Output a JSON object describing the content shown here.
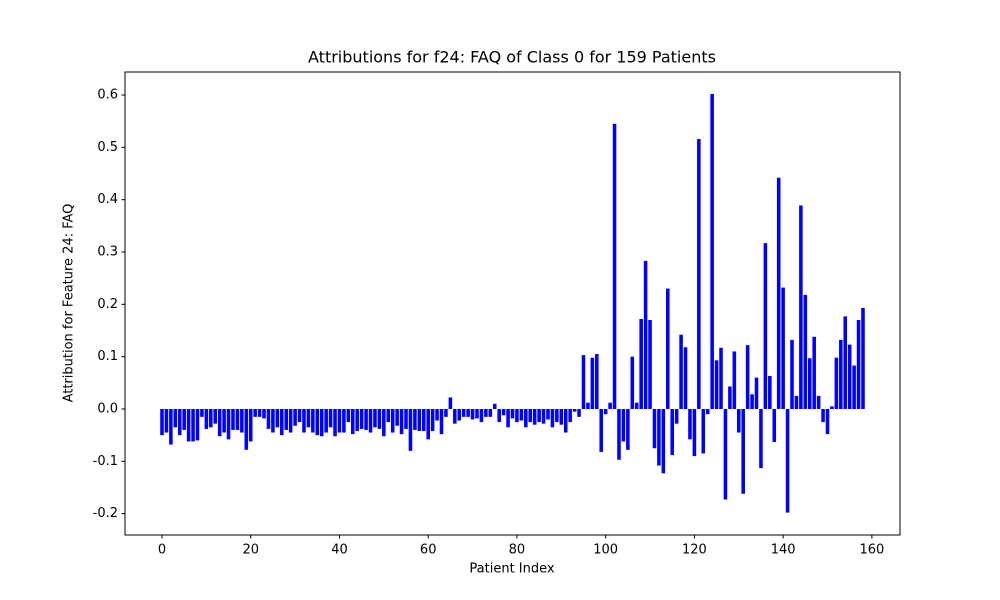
{
  "chart_data": {
    "type": "bar",
    "title": "Attributions for f24: FAQ of Class 0 for 159 Patients",
    "xlabel": "Patient Index",
    "ylabel": "Attribution for Feature 24: FAQ",
    "color": "#0000ff",
    "values": [
      -0.05,
      -0.045,
      -0.068,
      -0.035,
      -0.05,
      -0.04,
      -0.062,
      -0.062,
      -0.06,
      -0.015,
      -0.038,
      -0.035,
      -0.028,
      -0.052,
      -0.045,
      -0.058,
      -0.04,
      -0.04,
      -0.045,
      -0.078,
      -0.062,
      -0.015,
      -0.015,
      -0.018,
      -0.038,
      -0.045,
      -0.035,
      -0.05,
      -0.04,
      -0.045,
      -0.032,
      -0.025,
      -0.045,
      -0.035,
      -0.045,
      -0.05,
      -0.052,
      -0.045,
      -0.035,
      -0.052,
      -0.045,
      -0.045,
      -0.025,
      -0.048,
      -0.042,
      -0.038,
      -0.04,
      -0.045,
      -0.035,
      -0.038,
      -0.052,
      -0.025,
      -0.045,
      -0.032,
      -0.048,
      -0.038,
      -0.08,
      -0.04,
      -0.042,
      -0.042,
      -0.058,
      -0.042,
      -0.022,
      -0.048,
      -0.015,
      0.022,
      -0.028,
      -0.022,
      -0.015,
      -0.015,
      -0.02,
      -0.018,
      -0.025,
      -0.015,
      -0.015,
      0.01,
      -0.025,
      -0.012,
      -0.035,
      -0.018,
      -0.025,
      -0.022,
      -0.035,
      -0.025,
      -0.03,
      -0.025,
      -0.028,
      -0.02,
      -0.035,
      -0.025,
      -0.03,
      -0.045,
      -0.025,
      -0.005,
      -0.015,
      0.103,
      0.012,
      0.098,
      0.105,
      -0.082,
      -0.01,
      0.012,
      0.545,
      -0.097,
      -0.062,
      -0.078,
      0.1,
      0.012,
      0.172,
      0.283,
      0.17,
      -0.075,
      -0.108,
      -0.123,
      0.23,
      -0.088,
      -0.028,
      0.142,
      0.118,
      -0.058,
      -0.09,
      0.516,
      -0.085,
      -0.01,
      0.602,
      0.093,
      0.117,
      -0.173,
      0.043,
      0.11,
      -0.045,
      -0.162,
      0.122,
      0.028,
      0.06,
      -0.113,
      0.317,
      0.063,
      -0.063,
      0.442,
      0.232,
      -0.198,
      0.132,
      0.025,
      0.389,
      0.218,
      0.097,
      0.138,
      0.025,
      -0.025,
      -0.048,
      0.005,
      0.098,
      0.132,
      0.177,
      0.123,
      0.083,
      0.17,
      0.193
    ],
    "xlim": [
      -8.34,
      166.34
    ],
    "xticks": [
      0,
      20,
      40,
      60,
      80,
      100,
      120,
      140,
      160
    ],
    "ylim": [
      -0.2408,
      0.644
    ],
    "yticks": [
      -0.2,
      -0.1,
      {
        "value": 0,
        "label": "0.0"
      },
      0.1,
      0.2,
      0.3,
      0.4,
      0.5,
      0.6
    ]
  }
}
